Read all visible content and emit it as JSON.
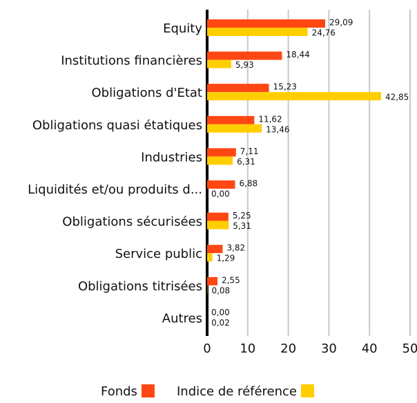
{
  "chart_data": {
    "type": "bar",
    "orientation": "horizontal",
    "categories": [
      "Equity",
      "Institutions financières",
      "Obligations d'Etat",
      "Obligations quasi étatiques",
      "Industries",
      "Liquidités et/ou produits d...",
      "Obligations sécurisées",
      "Service public",
      "Obligations titrisées",
      "Autres"
    ],
    "series": [
      {
        "name": "Fonds",
        "color": "#ff4713",
        "values": [
          29.09,
          18.44,
          15.23,
          11.62,
          7.11,
          6.88,
          5.25,
          3.82,
          2.55,
          0.0
        ],
        "value_labels": [
          "29,09",
          "18,44",
          "15,23",
          "11,62",
          "7,11",
          "6,88",
          "5,25",
          "3,82",
          "2,55",
          "0,00"
        ]
      },
      {
        "name": "Indice de référence",
        "color": "#ffce00",
        "values": [
          24.76,
          5.93,
          42.85,
          13.46,
          6.31,
          0.0,
          5.31,
          1.29,
          0.08,
          0.02
        ],
        "value_labels": [
          "24,76",
          "5,93",
          "42,85",
          "13,46",
          "6,31",
          "0,00",
          "5,31",
          "1,29",
          "0,08",
          "0,02"
        ]
      }
    ],
    "xlim": [
      0,
      50
    ],
    "xticks": [
      0,
      10,
      20,
      30,
      40,
      50
    ],
    "grid": true
  }
}
